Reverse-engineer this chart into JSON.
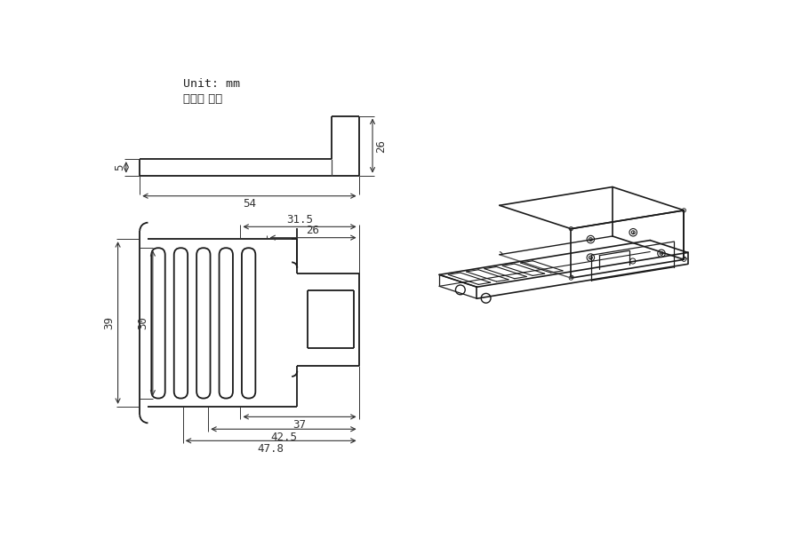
{
  "bg_color": "#ffffff",
  "line_color": "#1a1a1a",
  "dim_color": "#333333",
  "unit_text": "Unit: mm",
  "unit_text2": "单位： 毫米",
  "dims": {
    "top_54": "54",
    "top_5": "5",
    "top_26": "26",
    "front_39": "39",
    "front_30": "30",
    "front_31_5": "31.5",
    "front_26": "26",
    "front_37": "37",
    "front_42_5": "42.5",
    "front_47_8": "47.8"
  }
}
